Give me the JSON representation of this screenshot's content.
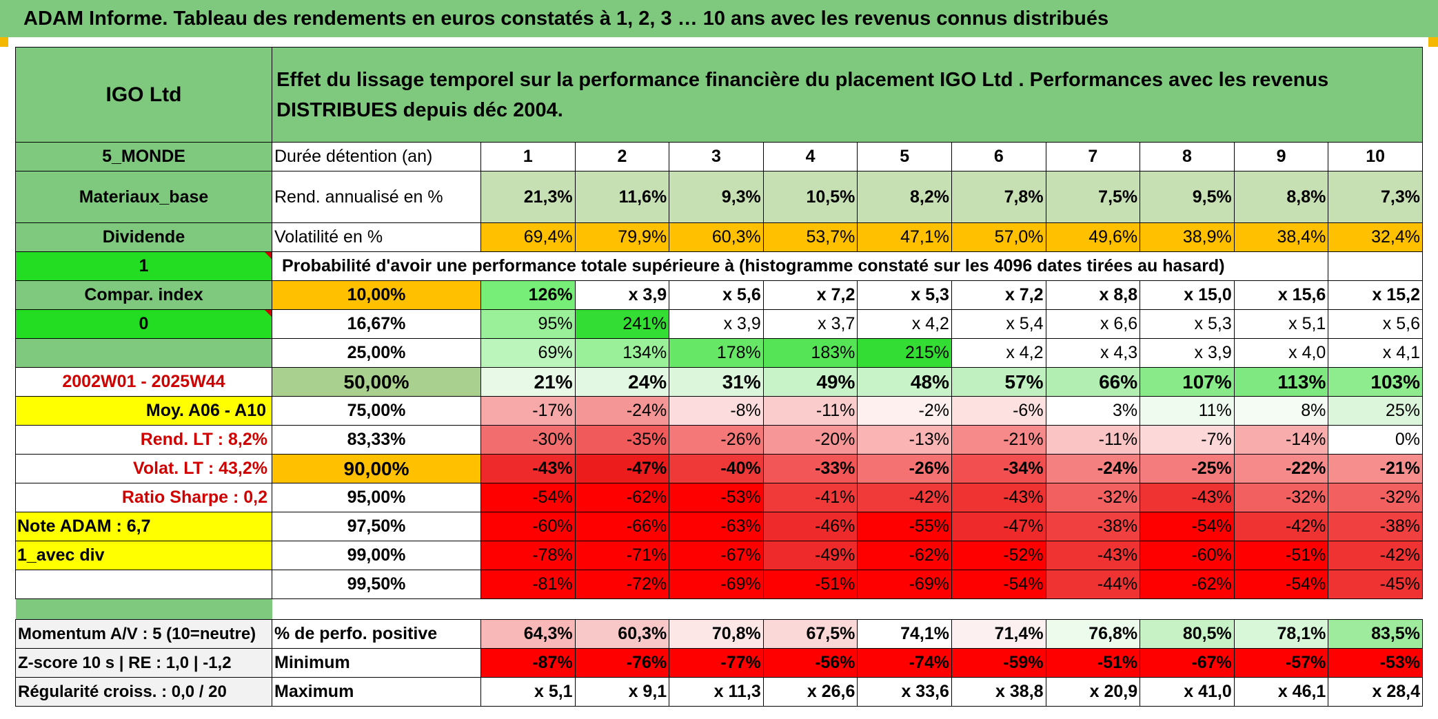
{
  "header": {
    "title": "ADAM Informe. Tableau des rendements en euros constatés à 1, 2, 3 … 10 ans avec les revenus connus distribués"
  },
  "left": {
    "name": "IGO Ltd",
    "region": "5_MONDE",
    "sector": "Materiaux_base",
    "type": "Dividende",
    "flag1": "1",
    "compar": "Compar. index",
    "flag0": "0",
    "period": "2002W01 - 2025W44",
    "moy": "Moy. A06 - A10",
    "rend_lt": "Rend. LT :    8,2%",
    "volat_lt": "Volat. LT :   43,2%",
    "sharpe": "Ratio Sharpe :    0,2",
    "note": "Note ADAM : 6,7",
    "avec_div": "1_avec div",
    "momentum": "Momentum A/V : 5 (10=neutre)",
    "zscore": "Z-score 10 s | RE : 1,0 | -1,2",
    "regularite": "Régularité croiss. : 0,0 / 20"
  },
  "description": "Effet du lissage temporel sur la performance financière du placement IGO Ltd . Performances avec les revenus DISTRIBUES depuis déc 2004.",
  "durations": {
    "label": "Durée détention (an)",
    "values": [
      "1",
      "2",
      "3",
      "4",
      "5",
      "6",
      "7",
      "8",
      "9",
      "10"
    ]
  },
  "rend": {
    "label": "Rend. annualisé en %",
    "values": [
      "21,3%",
      "11,6%",
      "9,3%",
      "10,5%",
      "8,2%",
      "7,8%",
      "7,5%",
      "9,5%",
      "8,8%",
      "7,3%"
    ]
  },
  "vol": {
    "label": "Volatilité en %",
    "values": [
      "69,4%",
      "79,9%",
      "60,3%",
      "53,7%",
      "47,1%",
      "57,0%",
      "49,6%",
      "38,9%",
      "38,4%",
      "32,4%"
    ]
  },
  "proba_title": "Probabilité d'avoir une performance totale supérieure à (histogramme constaté sur les 4096 dates tirées au hasard)",
  "pct_rows": [
    {
      "p": "10,00%",
      "values": [
        "126%",
        "x 3,9",
        "x 5,6",
        "x 7,2",
        "x 5,3",
        "x 7,2",
        "x 8,8",
        "x 15,0",
        "x 15,6",
        "x 15,2"
      ]
    },
    {
      "p": "16,67%",
      "values": [
        "95%",
        "241%",
        "x 3,9",
        "x 3,7",
        "x 4,2",
        "x 5,4",
        "x 6,6",
        "x 5,3",
        "x 5,1",
        "x 5,6"
      ]
    },
    {
      "p": "25,00%",
      "values": [
        "69%",
        "134%",
        "178%",
        "183%",
        "215%",
        "x 4,2",
        "x 4,3",
        "x 3,9",
        "x 4,0",
        "x 4,1"
      ]
    },
    {
      "p": "50,00%",
      "values": [
        "21%",
        "24%",
        "31%",
        "49%",
        "48%",
        "57%",
        "66%",
        "107%",
        "113%",
        "103%"
      ]
    },
    {
      "p": "75,00%",
      "values": [
        "-17%",
        "-24%",
        "-8%",
        "-11%",
        "-2%",
        "-6%",
        "3%",
        "11%",
        "8%",
        "25%"
      ]
    },
    {
      "p": "83,33%",
      "values": [
        "-30%",
        "-35%",
        "-26%",
        "-20%",
        "-13%",
        "-21%",
        "-11%",
        "-7%",
        "-14%",
        "0%"
      ]
    },
    {
      "p": "90,00%",
      "values": [
        "-43%",
        "-47%",
        "-40%",
        "-33%",
        "-26%",
        "-34%",
        "-24%",
        "-25%",
        "-22%",
        "-21%"
      ]
    },
    {
      "p": "95,00%",
      "values": [
        "-54%",
        "-62%",
        "-53%",
        "-41%",
        "-42%",
        "-43%",
        "-32%",
        "-43%",
        "-32%",
        "-32%"
      ]
    },
    {
      "p": "97,50%",
      "values": [
        "-60%",
        "-66%",
        "-63%",
        "-46%",
        "-55%",
        "-47%",
        "-38%",
        "-54%",
        "-42%",
        "-38%"
      ]
    },
    {
      "p": "99,00%",
      "values": [
        "-78%",
        "-71%",
        "-67%",
        "-49%",
        "-62%",
        "-52%",
        "-43%",
        "-60%",
        "-51%",
        "-42%"
      ]
    },
    {
      "p": "99,50%",
      "values": [
        "-81%",
        "-72%",
        "-69%",
        "-51%",
        "-69%",
        "-54%",
        "-44%",
        "-62%",
        "-54%",
        "-45%"
      ]
    }
  ],
  "positive": {
    "label": "% de perfo. positive",
    "values": [
      "64,3%",
      "60,3%",
      "70,8%",
      "67,5%",
      "74,1%",
      "71,4%",
      "76,8%",
      "80,5%",
      "78,1%",
      "83,5%"
    ]
  },
  "minimum": {
    "label": "Minimum",
    "values": [
      "-87%",
      "-76%",
      "-77%",
      "-56%",
      "-74%",
      "-59%",
      "-51%",
      "-67%",
      "-57%",
      "-53%"
    ]
  },
  "maximum": {
    "label": "Maximum",
    "values": [
      "x 5,1",
      "x 9,1",
      "x 11,3",
      "x 26,6",
      "x 33,6",
      "x 38,8",
      "x 20,9",
      "x 41,0",
      "x 46,1",
      "x 28,4"
    ]
  },
  "colors": {
    "header_green": "#7ec97e",
    "bright_green": "#22dd22",
    "orange": "#ffc000",
    "yellow": "#ffff00",
    "light_green": "#c6e0b4",
    "strong_red": "#ff0000",
    "label_red": "#d00000"
  },
  "cell_colors": {
    "rend": [
      "#c6e0b4",
      "#c6e0b4",
      "#c6e0b4",
      "#c6e0b4",
      "#c6e0b4",
      "#c6e0b4",
      "#c6e0b4",
      "#c6e0b4",
      "#c6e0b4",
      "#c6e0b4"
    ],
    "vol": [
      "#ffc000",
      "#ffc000",
      "#ffc000",
      "#ffc000",
      "#ffc000",
      "#ffc000",
      "#ffc000",
      "#ffc000",
      "#ffc000",
      "#ffc000"
    ],
    "pct": [
      [
        "#77ee77",
        "#ffffff",
        "#ffffff",
        "#ffffff",
        "#ffffff",
        "#ffffff",
        "#ffffff",
        "#ffffff",
        "#ffffff",
        "#ffffff"
      ],
      [
        "#99f099",
        "#33dd33",
        "#ffffff",
        "#ffffff",
        "#ffffff",
        "#ffffff",
        "#ffffff",
        "#ffffff",
        "#ffffff",
        "#ffffff"
      ],
      [
        "#bbf5bb",
        "#99f099",
        "#66e866",
        "#55e455",
        "#33dd33",
        "#ffffff",
        "#ffffff",
        "#ffffff",
        "#ffffff",
        "#ffffff"
      ],
      [
        "#e8f9e8",
        "#e3f8e3",
        "#dcf6dc",
        "#c8f2c8",
        "#c8f2c8",
        "#c0f0c0",
        "#b2edb2",
        "#88ea88",
        "#80e880",
        "#8eeb8e"
      ],
      [
        "#f7a8a8",
        "#f59696",
        "#fcdcdc",
        "#fbcccc",
        "#fff0f0",
        "#fde0e0",
        "#ffffff",
        "#eefbee",
        "#f4fcf4",
        "#dcf6dc"
      ],
      [
        "#f26e6e",
        "#f05a5a",
        "#f47878",
        "#f79696",
        "#faB4B4",
        "#f68a8a",
        "#fbc4c4",
        "#fdd8d8",
        "#f9acac",
        "#ffffff"
      ],
      [
        "#ee2a2a",
        "#ec1c1c",
        "#ef3838",
        "#f25656",
        "#f47272",
        "#f25050",
        "#f58080",
        "#f57c7c",
        "#f68a8a",
        "#f68e8e"
      ],
      [
        "#ff0000",
        "#ff0000",
        "#ff0000",
        "#f03a3a",
        "#f03a3a",
        "#ef3333",
        "#f36060",
        "#ef3333",
        "#f36060",
        "#f36060"
      ],
      [
        "#ff0000",
        "#ff0000",
        "#ff0000",
        "#ee2a2a",
        "#ff0000",
        "#ee2a2a",
        "#f04040",
        "#ff0000",
        "#ef3232",
        "#f04040"
      ],
      [
        "#ff0000",
        "#ff0000",
        "#ff0000",
        "#ee2a2a",
        "#ff0000",
        "#ff0000",
        "#ef3333",
        "#ff0000",
        "#ff0000",
        "#ef3333"
      ],
      [
        "#ff0000",
        "#ff0000",
        "#ff0000",
        "#ff0000",
        "#ff0000",
        "#ff0000",
        "#ef3333",
        "#ff0000",
        "#ff0000",
        "#ef3333"
      ]
    ],
    "positive": [
      "#f8b8b8",
      "#f8c8c8",
      "#fde6e6",
      "#fbd8d8",
      "#ffffff",
      "#fdf0f0",
      "#ecfbec",
      "#c6f2c6",
      "#d8f6d8",
      "#9eeb9e"
    ],
    "minimum": [
      "#ff0000",
      "#ff0000",
      "#ff0000",
      "#ff0000",
      "#ff0000",
      "#ff0000",
      "#ff0000",
      "#ff0000",
      "#ff0000",
      "#ff0000"
    ],
    "maximum": [
      "#ffffff",
      "#ffffff",
      "#ffffff",
      "#ffffff",
      "#ffffff",
      "#ffffff",
      "#ffffff",
      "#ffffff",
      "#ffffff",
      "#ffffff"
    ]
  },
  "pct_label_colors": [
    "#ffc000",
    "#ffffff",
    "#ffffff",
    "#a9d08e",
    "#ffffff",
    "#ffffff",
    "#ffc000",
    "#ffffff",
    "#ffffff",
    "#ffffff",
    "#ffffff"
  ]
}
